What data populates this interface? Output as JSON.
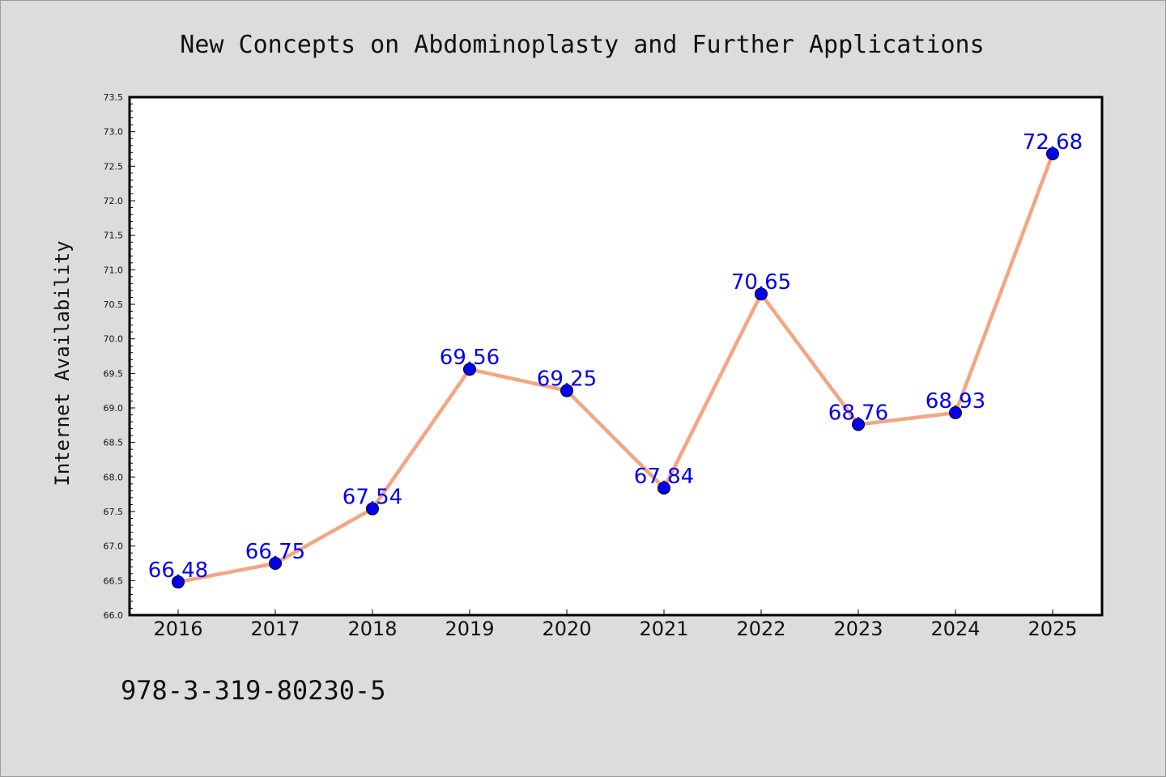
{
  "chart_data": {
    "type": "line",
    "title": "New Concepts on Abdominoplasty and Further Applications",
    "xlabel": "",
    "ylabel": "Internet Availability",
    "categories": [
      "2016",
      "2017",
      "2018",
      "2019",
      "2020",
      "2021",
      "2022",
      "2023",
      "2024",
      "2025"
    ],
    "series": [
      {
        "values": [
          66.48,
          66.75,
          67.54,
          69.56,
          69.25,
          67.84,
          70.65,
          68.76,
          68.93,
          72.68
        ]
      }
    ],
    "data_labels": [
      "66.48",
      "66.75",
      "67.54",
      "69.56",
      "69.25",
      "67.84",
      "70.65",
      "68.76",
      "68.93",
      "72.68"
    ],
    "ylim": [
      66.0,
      73.5
    ],
    "yticks": [
      "66.0",
      "66.5",
      "67.0",
      "67.5",
      "68.0",
      "68.5",
      "69.0",
      "69.5",
      "70.0",
      "70.5",
      "71.0",
      "71.5",
      "72.0",
      "72.5",
      "73.0",
      "73.5"
    ],
    "grid": false,
    "line_color": "#f4a582",
    "marker_color": "#0000ee",
    "label_color": "#0000ee",
    "background": "#dcdcdc",
    "plot_background": "#ffffff"
  },
  "footer": {
    "isbn": "978-3-319-80230-5"
  }
}
